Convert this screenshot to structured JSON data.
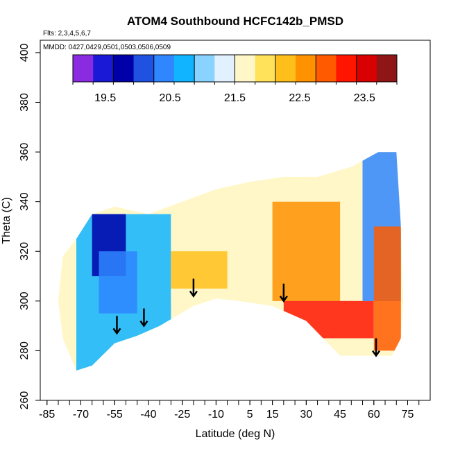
{
  "chart_data": {
    "type": "heatmap",
    "title": "ATOM4 Southbound HCFC142b_PMSD",
    "flights_note": "Flts: 2,3,4,5,6,7",
    "dates_note": "MMDD: 0427,0429,0501,0503,0506,0509",
    "xlabel": "Latitude (deg N)",
    "ylabel": "Theta (C)",
    "xlim": [
      -88,
      85
    ],
    "ylim": [
      260,
      405
    ],
    "x_ticks": [
      -85,
      -70,
      -55,
      -40,
      -25,
      -10,
      5,
      15,
      30,
      45,
      60,
      75
    ],
    "y_ticks": [
      260,
      280,
      300,
      320,
      340,
      360,
      380,
      400
    ],
    "colorbar": {
      "range": [
        19,
        24
      ],
      "tick_values": [
        19.5,
        20.5,
        21.5,
        22.5,
        23.5
      ],
      "tick_labels": [
        "19.5",
        "20.5",
        "21.5",
        "22.5",
        "23.5"
      ],
      "colors": [
        "#8a2be2",
        "#1a1ad6",
        "#0000a8",
        "#1f52e0",
        "#2f86ff",
        "#10b4ff",
        "#8ad2ff",
        "#e2f1ff",
        "#fff7c8",
        "#ffe25a",
        "#ffbf1a",
        "#ff9200",
        "#ff5a00",
        "#ff1500",
        "#d80000",
        "#8e1616"
      ]
    },
    "tropopause_arrows": [
      {
        "lat": -54,
        "theta": 287
      },
      {
        "lat": -42,
        "theta": 290
      },
      {
        "lat": -20,
        "theta": 302
      },
      {
        "lat": 20,
        "theta": 300
      },
      {
        "lat": 61,
        "theta": 278
      }
    ],
    "regions": [
      {
        "lat": [
          -72,
          -30
        ],
        "theta": [
          270,
          335
        ],
        "value": 20.8
      },
      {
        "lat": [
          -65,
          -50
        ],
        "theta": [
          310,
          335
        ],
        "value": 19.8
      },
      {
        "lat": [
          -62,
          -45
        ],
        "theta": [
          295,
          320
        ],
        "value": 20.3
      },
      {
        "lat": [
          -30,
          15
        ],
        "theta": [
          300,
          345
        ],
        "value": 21.6
      },
      {
        "lat": [
          -30,
          -5
        ],
        "theta": [
          305,
          320
        ],
        "value": 22.4
      },
      {
        "lat": [
          15,
          45
        ],
        "theta": [
          300,
          340
        ],
        "value": 22.5
      },
      {
        "lat": [
          20,
          60
        ],
        "theta": [
          285,
          300
        ],
        "value": 23.3
      },
      {
        "lat": [
          55,
          72
        ],
        "theta": [
          300,
          360
        ],
        "value": 20.5
      },
      {
        "lat": [
          60,
          72
        ],
        "theta": [
          280,
          330
        ],
        "value": 23.0
      }
    ]
  }
}
